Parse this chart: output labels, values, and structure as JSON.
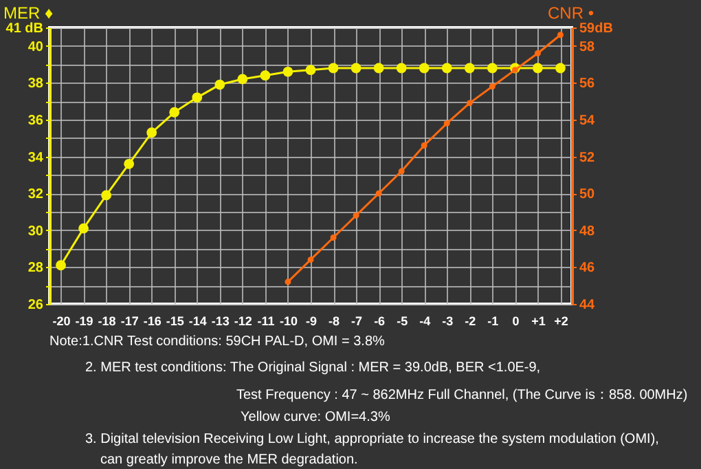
{
  "chart_data": {
    "type": "line",
    "ylabel": "MER ♦",
    "y2label": "CNR •",
    "categories": [
      "-20",
      "-19",
      "-18",
      "-17",
      "-16",
      "-15",
      "-14",
      "-13",
      "-12",
      "-11",
      "-10",
      "-9",
      "-8",
      "-7",
      "-6",
      "-5",
      "-4",
      "-3",
      "-2",
      "-1",
      "0",
      "+1",
      "+2"
    ],
    "series": [
      {
        "color": "#f5f000",
        "values": [
          28.1,
          30.1,
          31.9,
          33.6,
          35.3,
          36.4,
          37.2,
          37.9,
          38.2,
          38.4,
          38.6,
          38.7,
          38.8,
          38.8,
          38.8,
          38.8,
          38.8,
          38.8,
          38.8,
          38.8,
          38.8,
          38.8,
          38.8
        ]
      },
      {
        "color": "#ff6a10",
        "axis": "y2",
        "values": [
          null,
          null,
          null,
          null,
          null,
          null,
          null,
          null,
          null,
          null,
          45.2,
          46.4,
          47.6,
          48.8,
          50.0,
          51.2,
          52.6,
          53.8,
          54.9,
          55.8,
          56.7,
          57.6,
          58.6
        ]
      }
    ],
    "ylim": [
      26,
      41
    ],
    "yticks": [
      26,
      {
        "value": 27,
        "label": null
      },
      28,
      {
        "value": 29,
        "label": null
      },
      30,
      {
        "value": 31,
        "label": null
      },
      32,
      {
        "value": 33,
        "label": null
      },
      34,
      {
        "value": 35,
        "label": null
      },
      36,
      {
        "value": 37,
        "label": null
      },
      38,
      {
        "value": 39,
        "label": null
      },
      40,
      {
        "value": 41,
        "label": "41 dB"
      }
    ],
    "y2lim": [
      44,
      59
    ],
    "y2ticks": [
      44,
      46,
      48,
      50,
      52,
      54,
      56,
      58,
      {
        "value": 59,
        "label": "59dB"
      }
    ],
    "grid": true,
    "marker": "circle",
    "annotations": [
      "Note:1.CNR Test conditions: 59CH PAL-D, OMI = 3.8%",
      "2. MER test conditions: The Original Signal : MER = 39.0dB, BER <1.0E-9,",
      "Test Frequency : 47 ~ 862MHz Full Channel, (The Curve is：858. 00MHz)",
      "Yellow curve: OMI=4.3%",
      "3. Digital television Receiving Low Light, appropriate to increase the system modulation (OMI),",
      "can greatly improve the MER degradation."
    ]
  }
}
